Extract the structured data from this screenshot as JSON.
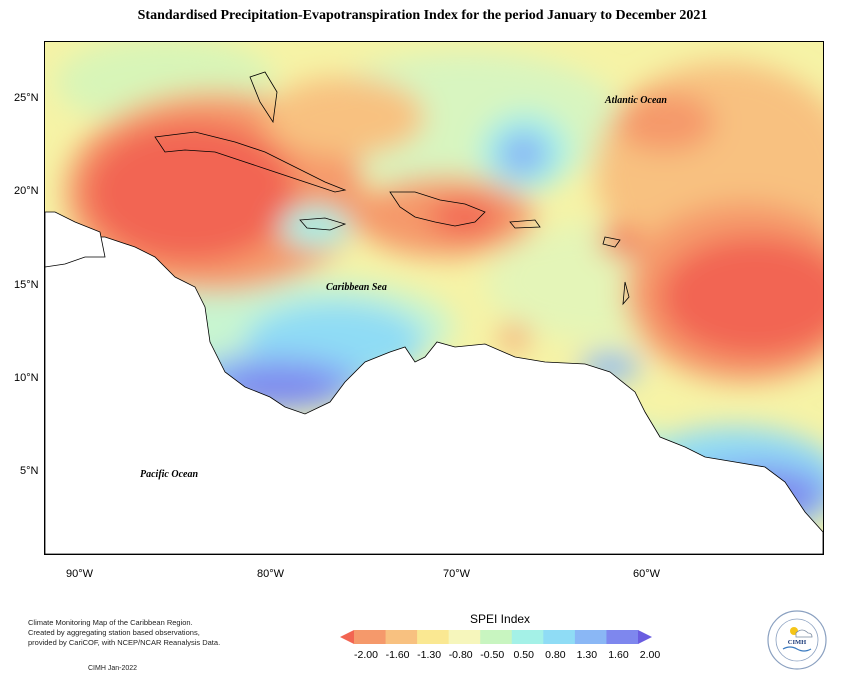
{
  "title": "Standardised Precipitation-Evapotranspiration Index for the period January to December 2021",
  "labels": {
    "atlantic": "Atlantic Ocean",
    "caribbean": "Caribbean Sea",
    "pacific": "Pacific Ocean"
  },
  "lat_ticks": [
    "25°N",
    "20°N",
    "15°N",
    "10°N",
    "5°N"
  ],
  "lon_ticks": [
    "90°W",
    "80°W",
    "70°W",
    "60°W"
  ],
  "legend": {
    "title": "SPEI Index",
    "values": [
      "-2.00",
      "-1.60",
      "-1.30",
      "-0.80",
      "-0.50",
      "0.50",
      "0.80",
      "1.30",
      "1.60",
      "2.00"
    ],
    "colors": [
      "#f26552",
      "#f5996b",
      "#f8c180",
      "#fae892",
      "#f6f6bc",
      "#c8f5c0",
      "#a4f1e7",
      "#8fdcf5",
      "#8ab7f5",
      "#7e87ee",
      "#6a5de0"
    ]
  },
  "footer": {
    "line1": "Climate Monitoring Map of the Caribbean Region.",
    "line2": "Created by aggregating station based observations,",
    "line3": "provided by CariCOF, with NCEP/NCAR Reanalysis Data.",
    "credit": "CIMH Jan-2022"
  },
  "logo": {
    "acronym": "CIMH",
    "ring_text": "Caribbean Institute for Meteorology and Hydrology"
  }
}
